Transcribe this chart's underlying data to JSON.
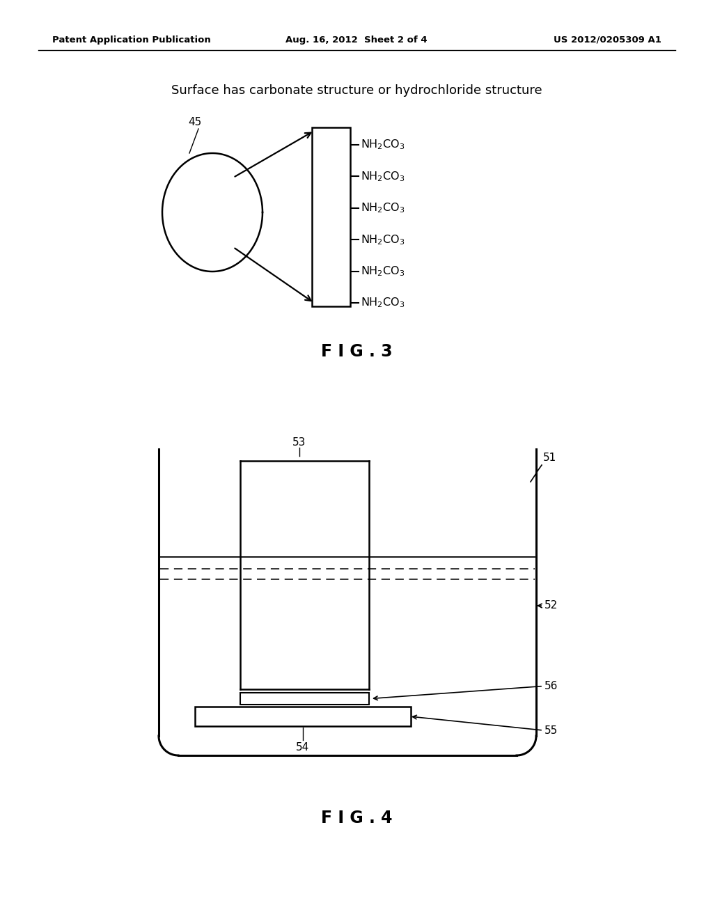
{
  "bg_color": "#ffffff",
  "header_left": "Patent Application Publication",
  "header_center": "Aug. 16, 2012  Sheet 2 of 4",
  "header_right": "US 2012/0205309 A1",
  "fig3_title": "Surface has carbonate structure or hydrochloride structure",
  "fig3_label": "F I G . 3",
  "fig4_label": "F I G . 4",
  "circle_label": "45",
  "nh2co3_count": 6
}
